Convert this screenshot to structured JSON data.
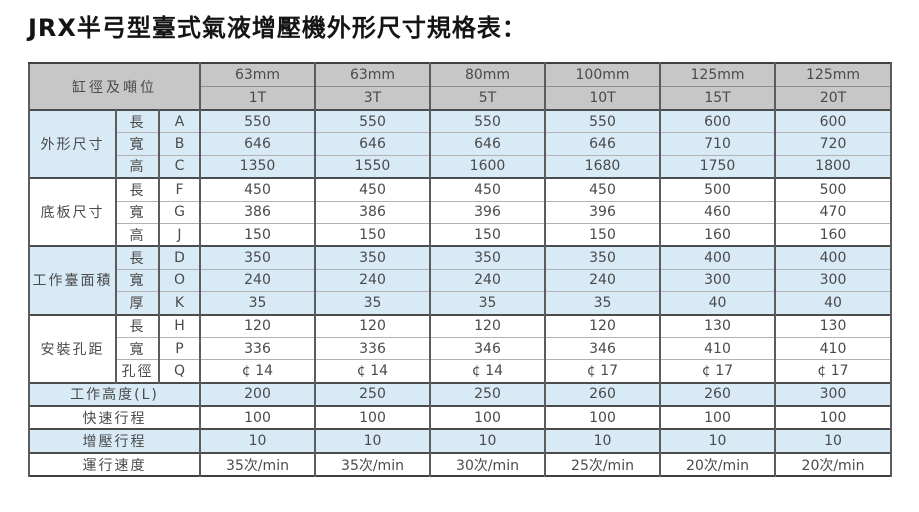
{
  "title": "JRX半弓型臺式氣液增壓機外形尺寸規格表：",
  "table": {
    "corner_label": "缸徑及噸位",
    "columns": [
      {
        "bore": "63mm",
        "tonnage": "1T"
      },
      {
        "bore": "63mm",
        "tonnage": "3T"
      },
      {
        "bore": "80mm",
        "tonnage": "5T"
      },
      {
        "bore": "100mm",
        "tonnage": "10T"
      },
      {
        "bore": "125mm",
        "tonnage": "15T"
      },
      {
        "bore": "125mm",
        "tonnage": "20T"
      }
    ],
    "groups": [
      {
        "name": "外形尺寸",
        "rows": [
          {
            "dim": "長",
            "code": "A",
            "values": [
              "550",
              "550",
              "550",
              "550",
              "600",
              "600"
            ]
          },
          {
            "dim": "寬",
            "code": "B",
            "values": [
              "646",
              "646",
              "646",
              "646",
              "710",
              "720"
            ]
          },
          {
            "dim": "高",
            "code": "C",
            "values": [
              "1350",
              "1550",
              "1600",
              "1680",
              "1750",
              "1800"
            ]
          }
        ]
      },
      {
        "name": "底板尺寸",
        "rows": [
          {
            "dim": "長",
            "code": "F",
            "values": [
              "450",
              "450",
              "450",
              "450",
              "500",
              "500"
            ]
          },
          {
            "dim": "寬",
            "code": "G",
            "values": [
              "386",
              "386",
              "396",
              "396",
              "460",
              "470"
            ]
          },
          {
            "dim": "高",
            "code": "J",
            "values": [
              "150",
              "150",
              "150",
              "150",
              "160",
              "160"
            ]
          }
        ]
      },
      {
        "name": "工作臺面積",
        "rows": [
          {
            "dim": "長",
            "code": "D",
            "values": [
              "350",
              "350",
              "350",
              "350",
              "400",
              "400"
            ]
          },
          {
            "dim": "寬",
            "code": "O",
            "values": [
              "240",
              "240",
              "240",
              "240",
              "300",
              "300"
            ]
          },
          {
            "dim": "厚",
            "code": "K",
            "values": [
              "35",
              "35",
              "35",
              "35",
              "40",
              "40"
            ]
          }
        ]
      },
      {
        "name": "安裝孔距",
        "rows": [
          {
            "dim": "長",
            "code": "H",
            "values": [
              "120",
              "120",
              "120",
              "120",
              "130",
              "130"
            ]
          },
          {
            "dim": "寬",
            "code": "P",
            "values": [
              "336",
              "336",
              "346",
              "346",
              "410",
              "410"
            ]
          },
          {
            "dim": "孔徑",
            "code": "Q",
            "values": [
              "¢ 14",
              "¢ 14",
              "¢ 14",
              "¢ 17",
              "¢ 17",
              "¢ 17"
            ]
          }
        ]
      }
    ],
    "footer_rows": [
      {
        "label": "工作高度(L)",
        "values": [
          "200",
          "250",
          "250",
          "260",
          "260",
          "300"
        ]
      },
      {
        "label": "快速行程",
        "values": [
          "100",
          "100",
          "100",
          "100",
          "100",
          "100"
        ]
      },
      {
        "label": "增壓行程",
        "values": [
          "10",
          "10",
          "10",
          "10",
          "10",
          "10"
        ]
      },
      {
        "label": "運行速度",
        "values": [
          "35次/min",
          "35次/min",
          "30次/min",
          "25次/min",
          "20次/min",
          "20次/min"
        ]
      }
    ],
    "colors": {
      "header_bg": "#c7c7c7",
      "row_blue_bg": "#d9eaf7",
      "row_white_bg": "#ffffff",
      "text": "#4a4a4a",
      "border_dark": "#4c4c4c",
      "border_light": "#b2b2b2"
    }
  }
}
